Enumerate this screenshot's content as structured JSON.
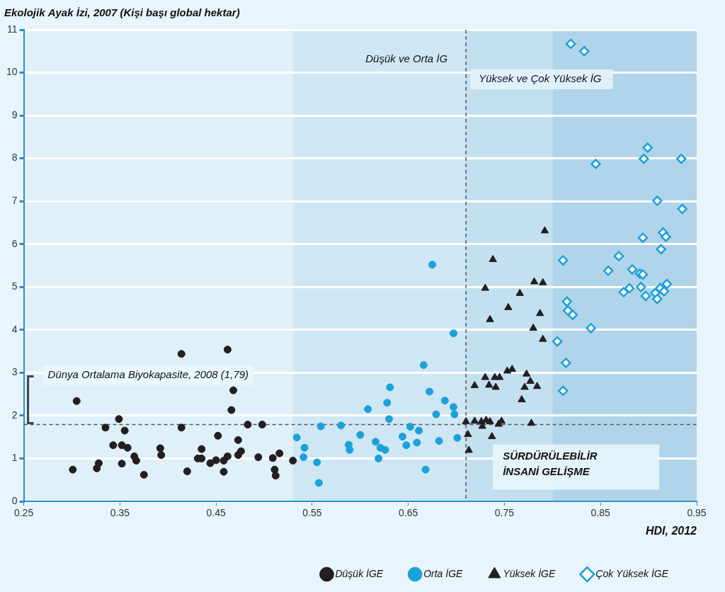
{
  "chart_data": {
    "type": "scatter",
    "title": "Ekolojik Ayak İzi, 2007 (Kişi başı global hektar)",
    "x_label": "HDI, 2012",
    "xlim": [
      0.25,
      0.95
    ],
    "xticks": [
      0.25,
      0.35,
      0.45,
      0.55,
      0.65,
      0.75,
      0.85,
      0.95
    ],
    "ylim": [
      0,
      11
    ],
    "yticks": [
      0,
      1,
      2,
      3,
      4,
      5,
      6,
      7,
      8,
      9,
      10,
      11
    ],
    "grid": true,
    "legend": "bottom",
    "bands": [
      {
        "from": 0.25,
        "to": 0.53,
        "color": "#dff0f9"
      },
      {
        "from": 0.53,
        "to": 0.71,
        "color": "#cfe7f4"
      },
      {
        "from": 0.71,
        "to": 0.8,
        "color": "#c3e0f0"
      },
      {
        "from": 0.8,
        "to": 0.95,
        "color": "#b0d4ea"
      }
    ],
    "hlines": [
      {
        "value": 1.79,
        "label": "Dünya Ortalama Biyokapasite, 2008 (1,79)"
      }
    ],
    "vlines": [
      {
        "value": 0.71,
        "label_left": "Düşük ve Orta İG",
        "label_right": "Yüksek ve Çok Yüksek İG"
      }
    ],
    "region_label": [
      "SÜRDÜRÜLEBİLİR",
      "İNSANİ GELİŞME"
    ],
    "series": [
      {
        "name": "Düşük İGE",
        "color": "#231f20",
        "marker": "circle",
        "x": [
          0.305,
          0.301,
          0.326,
          0.328,
          0.335,
          0.349,
          0.343,
          0.352,
          0.355,
          0.352,
          0.358,
          0.365,
          0.367,
          0.375,
          0.392,
          0.393,
          0.414,
          0.414,
          0.42,
          0.431,
          0.435,
          0.435,
          0.444,
          0.45,
          0.452,
          0.458,
          0.458,
          0.462,
          0.462,
          0.466,
          0.468,
          0.473,
          0.473,
          0.476,
          0.483,
          0.494,
          0.498,
          0.509,
          0.511,
          0.512,
          0.516,
          0.53
        ],
        "values": [
          2.34,
          0.74,
          0.77,
          0.89,
          1.72,
          1.92,
          1.31,
          1.31,
          1.65,
          0.88,
          1.25,
          1.05,
          0.95,
          0.62,
          1.24,
          1.08,
          3.44,
          1.72,
          0.7,
          1.0,
          1.22,
          1.0,
          0.89,
          0.96,
          1.53,
          0.69,
          0.95,
          1.05,
          3.54,
          2.13,
          2.59,
          1.43,
          1.08,
          1.17,
          1.79,
          1.03,
          1.79,
          1.01,
          0.74,
          0.6,
          1.12,
          0.95
        ]
      },
      {
        "name": "Orta İGE",
        "color": "#1ba1db",
        "marker": "circle",
        "x": [
          0.534,
          0.542,
          0.541,
          0.555,
          0.557,
          0.559,
          0.58,
          0.588,
          0.589,
          0.6,
          0.608,
          0.616,
          0.619,
          0.621,
          0.626,
          0.628,
          0.63,
          0.631,
          0.644,
          0.648,
          0.652,
          0.659,
          0.661,
          0.666,
          0.668,
          0.672,
          0.675,
          0.679,
          0.682,
          0.688,
          0.697,
          0.698,
          0.697,
          0.701
        ],
        "values": [
          1.49,
          1.25,
          1.03,
          0.91,
          0.43,
          1.75,
          1.77,
          1.32,
          1.2,
          1.55,
          2.15,
          1.39,
          1.0,
          1.25,
          1.2,
          2.3,
          1.92,
          2.66,
          1.51,
          1.31,
          1.74,
          1.37,
          1.65,
          3.18,
          0.74,
          2.56,
          5.52,
          2.03,
          1.41,
          2.35,
          2.2,
          2.03,
          3.92,
          1.48
        ]
      },
      {
        "name": "Yüksek İGE",
        "color": "#231f20",
        "marker": "triangle",
        "x": [
          0.71,
          0.712,
          0.713,
          0.719,
          0.719,
          0.726,
          0.727,
          0.73,
          0.73,
          0.731,
          0.734,
          0.735,
          0.735,
          0.737,
          0.738,
          0.74,
          0.741,
          0.744,
          0.745,
          0.747,
          0.753,
          0.754,
          0.758,
          0.766,
          0.768,
          0.771,
          0.773,
          0.777,
          0.778,
          0.78,
          0.781,
          0.784,
          0.787,
          0.79,
          0.79,
          0.792
        ],
        "values": [
          1.86,
          1.56,
          1.19,
          2.7,
          1.87,
          1.86,
          1.75,
          4.97,
          2.89,
          1.89,
          2.71,
          4.24,
          1.86,
          1.51,
          5.64,
          2.89,
          2.66,
          1.8,
          2.89,
          1.87,
          3.04,
          4.52,
          3.08,
          4.85,
          2.37,
          2.66,
          2.97,
          2.8,
          1.82,
          4.04,
          5.12,
          2.68,
          4.38,
          5.1,
          3.78,
          6.31
        ]
      },
      {
        "name": "Çok Yüksek İGE",
        "color": "#1ba1db",
        "marker": "diamond-open",
        "x": [
          0.819,
          0.833,
          0.845,
          0.899,
          0.895,
          0.934,
          0.909,
          0.935,
          0.915,
          0.918,
          0.894,
          0.913,
          0.811,
          0.869,
          0.858,
          0.883,
          0.891,
          0.894,
          0.892,
          0.88,
          0.874,
          0.919,
          0.912,
          0.916,
          0.897,
          0.907,
          0.909,
          0.815,
          0.816,
          0.821,
          0.84,
          0.805,
          0.814,
          0.811
        ],
        "values": [
          10.67,
          10.5,
          7.87,
          8.25,
          7.99,
          7.99,
          7.01,
          6.82,
          6.27,
          6.17,
          6.15,
          5.88,
          5.62,
          5.72,
          5.38,
          5.41,
          5.31,
          5.29,
          5.0,
          4.97,
          4.88,
          5.07,
          4.97,
          4.9,
          4.79,
          4.86,
          4.72,
          4.66,
          4.45,
          4.35,
          4.04,
          3.73,
          3.23,
          2.58
        ]
      }
    ]
  }
}
